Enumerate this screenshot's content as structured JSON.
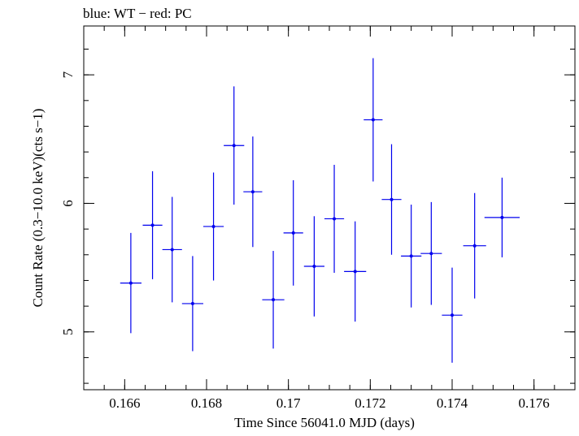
{
  "chart_data": {
    "type": "scatter",
    "title": "blue: WT − red: PC",
    "xlabel": "Time Since 56041.0 MJD (days)",
    "ylabel": "Count Rate (0.3−10.0 keV)(cts s−1)",
    "xlim": [
      0.165,
      0.177
    ],
    "ylim": [
      4.55,
      7.38
    ],
    "x_ticks": [
      {
        "value": 0.166,
        "label": "0.166"
      },
      {
        "value": 0.168,
        "label": "0.168"
      },
      {
        "value": 0.17,
        "label": "0.17"
      },
      {
        "value": 0.172,
        "label": "0.172"
      },
      {
        "value": 0.174,
        "label": "0.174"
      },
      {
        "value": 0.176,
        "label": "0.176"
      }
    ],
    "y_ticks": [
      {
        "value": 5,
        "label": "5"
      },
      {
        "value": 6,
        "label": "6"
      },
      {
        "value": 7,
        "label": "7"
      }
    ],
    "x_minor_step": 0.0005,
    "y_minor_step": 0.2,
    "grid": false,
    "series": [
      {
        "color": "#0000ee",
        "points": [
          {
            "x": 0.16615,
            "y": 5.38,
            "xerr_lo": 0.00026,
            "xerr_hi": 0.00026,
            "yerr_lo": 0.39,
            "yerr_hi": 0.39
          },
          {
            "x": 0.16668,
            "y": 5.83,
            "xerr_lo": 0.00024,
            "xerr_hi": 0.00024,
            "yerr_lo": 0.42,
            "yerr_hi": 0.42
          },
          {
            "x": 0.16716,
            "y": 5.64,
            "xerr_lo": 0.00024,
            "xerr_hi": 0.00024,
            "yerr_lo": 0.41,
            "yerr_hi": 0.41
          },
          {
            "x": 0.16766,
            "y": 5.22,
            "xerr_lo": 0.00026,
            "xerr_hi": 0.00026,
            "yerr_lo": 0.37,
            "yerr_hi": 0.37
          },
          {
            "x": 0.16817,
            "y": 5.82,
            "xerr_lo": 0.00025,
            "xerr_hi": 0.00025,
            "yerr_lo": 0.42,
            "yerr_hi": 0.42
          },
          {
            "x": 0.16867,
            "y": 6.45,
            "xerr_lo": 0.00025,
            "xerr_hi": 0.00025,
            "yerr_lo": 0.46,
            "yerr_hi": 0.46
          },
          {
            "x": 0.16913,
            "y": 6.09,
            "xerr_lo": 0.00023,
            "xerr_hi": 0.00023,
            "yerr_lo": 0.43,
            "yerr_hi": 0.43
          },
          {
            "x": 0.16963,
            "y": 5.25,
            "xerr_lo": 0.00027,
            "xerr_hi": 0.00027,
            "yerr_lo": 0.38,
            "yerr_hi": 0.38
          },
          {
            "x": 0.17012,
            "y": 5.77,
            "xerr_lo": 0.00024,
            "xerr_hi": 0.00024,
            "yerr_lo": 0.41,
            "yerr_hi": 0.41
          },
          {
            "x": 0.17063,
            "y": 5.51,
            "xerr_lo": 0.00025,
            "xerr_hi": 0.00025,
            "yerr_lo": 0.39,
            "yerr_hi": 0.39
          },
          {
            "x": 0.17112,
            "y": 5.88,
            "xerr_lo": 0.00024,
            "xerr_hi": 0.00024,
            "yerr_lo": 0.42,
            "yerr_hi": 0.42
          },
          {
            "x": 0.17163,
            "y": 5.47,
            "xerr_lo": 0.00027,
            "xerr_hi": 0.00027,
            "yerr_lo": 0.39,
            "yerr_hi": 0.39
          },
          {
            "x": 0.17207,
            "y": 6.65,
            "xerr_lo": 0.00023,
            "xerr_hi": 0.00023,
            "yerr_lo": 0.48,
            "yerr_hi": 0.48
          },
          {
            "x": 0.17252,
            "y": 6.03,
            "xerr_lo": 0.00024,
            "xerr_hi": 0.00024,
            "yerr_lo": 0.43,
            "yerr_hi": 0.43
          },
          {
            "x": 0.173,
            "y": 5.59,
            "xerr_lo": 0.00025,
            "xerr_hi": 0.00025,
            "yerr_lo": 0.4,
            "yerr_hi": 0.4
          },
          {
            "x": 0.17349,
            "y": 5.61,
            "xerr_lo": 0.00026,
            "xerr_hi": 0.00026,
            "yerr_lo": 0.4,
            "yerr_hi": 0.4
          },
          {
            "x": 0.174,
            "y": 5.13,
            "xerr_lo": 0.00025,
            "xerr_hi": 0.00025,
            "yerr_lo": 0.37,
            "yerr_hi": 0.37
          },
          {
            "x": 0.17455,
            "y": 5.67,
            "xerr_lo": 0.00028,
            "xerr_hi": 0.00028,
            "yerr_lo": 0.41,
            "yerr_hi": 0.41
          },
          {
            "x": 0.17522,
            "y": 5.89,
            "xerr_lo": 0.00043,
            "xerr_hi": 0.00043,
            "yerr_lo": 0.31,
            "yerr_hi": 0.31
          }
        ]
      }
    ]
  }
}
